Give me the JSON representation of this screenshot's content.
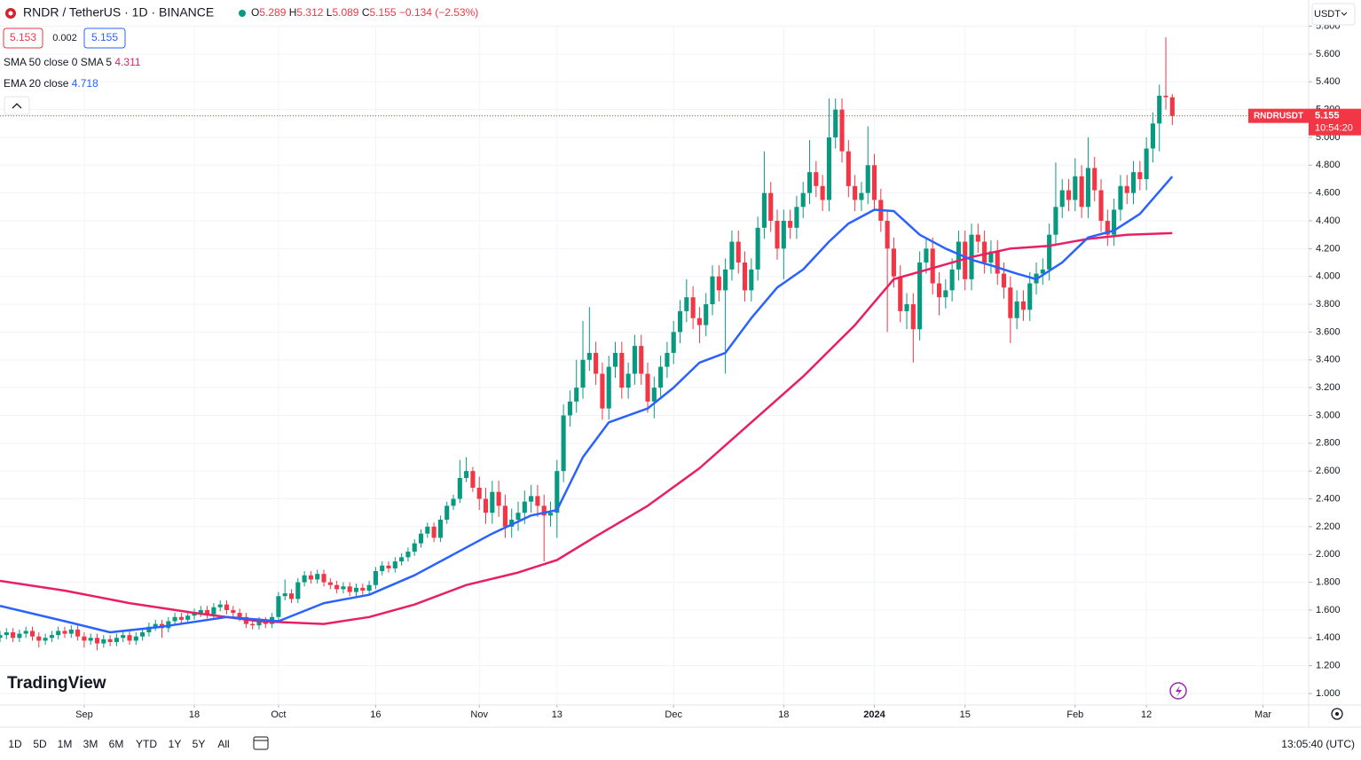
{
  "header": {
    "ohlc_labels": [
      "O",
      "H",
      "L",
      "C"
    ],
    "change": "−0.134 (−2.53%)",
    "bid": 5.153,
    "spread": 0.002,
    "ask": 5.155,
    "currency": "USDT",
    "symbol_tag": "RNDRUSDT",
    "countdown": "10:54:20",
    "logo": "TradingView"
  },
  "toolbar": {
    "ranges": [
      "1D",
      "5D",
      "1M",
      "3M",
      "6M",
      "YTD",
      "1Y",
      "5Y",
      "All"
    ],
    "clock": "13:05:40 (UTC)"
  },
  "chart_data": {
    "type": "candlestick",
    "title": "RNDR / TetherUS · 1D · BINANCE",
    "up_color": "#089981",
    "down_color": "#f23645",
    "grid": true,
    "xlim": [
      0,
      202.05
    ],
    "ylim": [
      0.917,
      5.797
    ],
    "xticks": [
      {
        "value": 13,
        "label": "Sep"
      },
      {
        "value": 30,
        "label": "18"
      },
      {
        "value": 43,
        "label": "Oct"
      },
      {
        "value": 58,
        "label": "16"
      },
      {
        "value": 74,
        "label": "Nov"
      },
      {
        "value": 86,
        "label": "13"
      },
      {
        "value": 104,
        "label": "Dec"
      },
      {
        "value": 121,
        "label": "18"
      },
      {
        "value": 135,
        "label": "2024"
      },
      {
        "value": 149,
        "label": "15"
      },
      {
        "value": 166,
        "label": "Feb"
      },
      {
        "value": 177,
        "label": "12"
      },
      {
        "value": 195,
        "label": "Mar"
      }
    ],
    "yticks": [
      {
        "value": 1.0,
        "label": "1.000"
      },
      {
        "value": 1.2,
        "label": "1.200"
      },
      {
        "value": 1.4,
        "label": "1.400"
      },
      {
        "value": 1.6,
        "label": "1.600"
      },
      {
        "value": 1.8,
        "label": "1.800"
      },
      {
        "value": 2.0,
        "label": "2.000"
      },
      {
        "value": 2.2,
        "label": "2.200"
      },
      {
        "value": 2.4,
        "label": "2.400"
      },
      {
        "value": 2.6,
        "label": "2.600"
      },
      {
        "value": 2.8,
        "label": "2.800"
      },
      {
        "value": 3.0,
        "label": "3.000"
      },
      {
        "value": 3.2,
        "label": "3.200"
      },
      {
        "value": 3.4,
        "label": "3.400"
      },
      {
        "value": 3.6,
        "label": "3.600"
      },
      {
        "value": 3.8,
        "label": "3.800"
      },
      {
        "value": 4.0,
        "label": "4.000"
      },
      {
        "value": 4.2,
        "label": "4.200"
      },
      {
        "value": 4.4,
        "label": "4.400"
      },
      {
        "value": 4.6,
        "label": "4.600"
      },
      {
        "value": 4.8,
        "label": "4.800"
      },
      {
        "value": 5.0,
        "label": "5.000"
      },
      {
        "value": 5.2,
        "label": "5.200"
      },
      {
        "value": 5.4,
        "label": "5.400"
      },
      {
        "value": 5.6,
        "label": "5.600"
      },
      {
        "value": 5.8,
        "label": "5.800"
      }
    ],
    "open": [
      1.4,
      1.42,
      1.44,
      1.4,
      1.43,
      1.45,
      1.41,
      1.38,
      1.4,
      1.42,
      1.45,
      1.43,
      1.46,
      1.41,
      1.38,
      1.4,
      1.36,
      1.39,
      1.37,
      1.4,
      1.42,
      1.38,
      1.41,
      1.44,
      1.48,
      1.5,
      1.47,
      1.52,
      1.55,
      1.53,
      1.56,
      1.58,
      1.6,
      1.57,
      1.62,
      1.64,
      1.6,
      1.58,
      1.55,
      1.5,
      1.49,
      1.52,
      1.5,
      1.55,
      1.7,
      1.72,
      1.68,
      1.8,
      1.85,
      1.82,
      1.86,
      1.8,
      1.78,
      1.75,
      1.77,
      1.73,
      1.76,
      1.74,
      1.78,
      1.88,
      1.92,
      1.9,
      1.95,
      1.98,
      2.02,
      2.08,
      2.15,
      2.2,
      2.12,
      2.25,
      2.35,
      2.4,
      2.55,
      2.6,
      2.48,
      2.4,
      2.3,
      2.45,
      2.35,
      2.2,
      2.25,
      2.3,
      2.38,
      2.42,
      2.35,
      2.28,
      2.3,
      2.6,
      3.0,
      3.1,
      3.2,
      3.4,
      3.45,
      3.3,
      3.05,
      3.35,
      3.45,
      3.2,
      3.3,
      3.5,
      3.3,
      3.1,
      3.2,
      3.35,
      3.45,
      3.6,
      3.75,
      3.85,
      3.7,
      3.65,
      3.8,
      4.0,
      3.9,
      4.05,
      4.25,
      4.1,
      3.9,
      4.05,
      4.35,
      4.6,
      4.4,
      4.2,
      4.4,
      4.35,
      4.5,
      4.6,
      4.75,
      4.65,
      4.55,
      5.0,
      5.2,
      4.9,
      4.65,
      4.55,
      4.6,
      4.8,
      4.55,
      4.4,
      4.2,
      4.0,
      3.75,
      3.8,
      3.62,
      4.1,
      4.2,
      3.95,
      3.85,
      3.9,
      4.05,
      4.25,
      3.98,
      4.3,
      4.25,
      4.1,
      4.18,
      4.02,
      3.92,
      3.7,
      3.82,
      3.76,
      3.95,
      4.02,
      4.05,
      4.3,
      4.5,
      4.62,
      4.55,
      4.72,
      4.5,
      4.78,
      4.62,
      4.4,
      4.3,
      4.48,
      4.65,
      4.6,
      4.75,
      4.7,
      4.92,
      5.1,
      5.3,
      5.289
    ],
    "high": [
      1.45,
      1.47,
      1.47,
      1.46,
      1.48,
      1.48,
      1.44,
      1.43,
      1.45,
      1.48,
      1.48,
      1.49,
      1.49,
      1.44,
      1.43,
      1.43,
      1.42,
      1.42,
      1.43,
      1.45,
      1.45,
      1.44,
      1.47,
      1.51,
      1.53,
      1.53,
      1.55,
      1.58,
      1.58,
      1.59,
      1.61,
      1.63,
      1.63,
      1.65,
      1.67,
      1.67,
      1.63,
      1.61,
      1.58,
      1.53,
      1.55,
      1.55,
      1.58,
      1.73,
      1.82,
      1.75,
      1.83,
      1.88,
      1.88,
      1.89,
      1.89,
      1.83,
      1.81,
      1.8,
      1.8,
      1.79,
      1.79,
      1.81,
      1.91,
      1.95,
      1.95,
      1.98,
      2.01,
      2.05,
      2.11,
      2.18,
      2.23,
      2.23,
      2.28,
      2.38,
      2.43,
      2.68,
      2.7,
      2.63,
      2.56,
      2.48,
      2.53,
      2.53,
      2.43,
      2.33,
      2.38,
      2.46,
      2.5,
      2.5,
      2.43,
      2.38,
      2.68,
      3.08,
      3.18,
      3.4,
      3.68,
      3.78,
      3.53,
      3.38,
      3.43,
      3.53,
      3.53,
      3.38,
      3.58,
      3.58,
      3.38,
      3.28,
      3.43,
      3.53,
      3.68,
      3.83,
      3.98,
      3.93,
      3.78,
      3.88,
      4.08,
      4.08,
      4.13,
      4.33,
      4.33,
      4.18,
      4.13,
      4.43,
      4.9,
      4.68,
      4.48,
      4.48,
      4.48,
      4.58,
      4.68,
      4.98,
      4.83,
      4.73,
      5.28,
      5.28,
      5.28,
      4.98,
      4.73,
      4.68,
      5.08,
      4.88,
      4.63,
      4.48,
      4.28,
      4.08,
      3.88,
      3.88,
      4.18,
      4.28,
      4.28,
      4.03,
      3.98,
      4.13,
      4.33,
      4.33,
      4.38,
      4.38,
      4.33,
      4.26,
      4.26,
      4.1,
      4.0,
      3.9,
      3.9,
      4.03,
      4.1,
      4.13,
      4.38,
      4.82,
      4.7,
      4.7,
      4.85,
      4.8,
      5.0,
      4.86,
      4.7,
      4.48,
      4.56,
      4.73,
      4.73,
      4.83,
      4.83,
      5.0,
      5.18,
      5.38,
      5.72,
      5.312
    ],
    "low": [
      1.37,
      1.39,
      1.37,
      1.37,
      1.4,
      1.38,
      1.33,
      1.35,
      1.37,
      1.39,
      1.4,
      1.4,
      1.38,
      1.33,
      1.35,
      1.31,
      1.33,
      1.34,
      1.34,
      1.37,
      1.35,
      1.35,
      1.38,
      1.41,
      1.45,
      1.4,
      1.44,
      1.49,
      1.5,
      1.5,
      1.53,
      1.55,
      1.54,
      1.54,
      1.59,
      1.57,
      1.55,
      1.52,
      1.47,
      1.46,
      1.46,
      1.47,
      1.47,
      1.52,
      1.67,
      1.65,
      1.65,
      1.77,
      1.79,
      1.79,
      1.77,
      1.75,
      1.72,
      1.72,
      1.7,
      1.7,
      1.71,
      1.71,
      1.75,
      1.85,
      1.87,
      1.87,
      1.92,
      1.95,
      1.99,
      2.05,
      2.12,
      2.09,
      2.09,
      2.22,
      2.32,
      2.37,
      2.52,
      2.45,
      2.32,
      2.22,
      2.22,
      2.27,
      2.12,
      2.12,
      2.17,
      2.22,
      2.3,
      2.27,
      1.95,
      2.2,
      2.12,
      2.52,
      2.92,
      3.02,
      3.12,
      3.32,
      3.22,
      2.97,
      2.97,
      3.27,
      3.12,
      3.12,
      3.22,
      3.22,
      3.02,
      2.98,
      3.12,
      3.27,
      3.37,
      3.52,
      3.67,
      3.62,
      3.52,
      3.57,
      3.72,
      3.82,
      3.3,
      3.97,
      4.02,
      3.82,
      3.82,
      3.97,
      4.27,
      4.32,
      4.12,
      3.98,
      4.27,
      4.27,
      4.42,
      4.52,
      4.57,
      4.47,
      4.47,
      4.92,
      4.82,
      4.57,
      4.47,
      4.47,
      4.52,
      4.47,
      4.32,
      3.6,
      3.92,
      3.67,
      3.62,
      3.38,
      3.54,
      4.02,
      3.87,
      3.72,
      3.77,
      3.82,
      3.97,
      3.9,
      3.9,
      4.17,
      4.02,
      4.02,
      3.94,
      3.84,
      3.52,
      3.62,
      3.68,
      3.68,
      3.87,
      3.94,
      3.97,
      4.22,
      4.42,
      4.47,
      4.47,
      4.42,
      4.42,
      4.54,
      4.32,
      4.22,
      4.22,
      4.4,
      4.52,
      4.52,
      4.62,
      4.62,
      4.82,
      4.9,
      5.2,
      5.089
    ],
    "close": [
      1.42,
      1.44,
      1.4,
      1.43,
      1.45,
      1.41,
      1.38,
      1.4,
      1.42,
      1.45,
      1.43,
      1.46,
      1.41,
      1.38,
      1.4,
      1.36,
      1.39,
      1.37,
      1.4,
      1.42,
      1.38,
      1.41,
      1.44,
      1.48,
      1.5,
      1.47,
      1.52,
      1.55,
      1.53,
      1.56,
      1.58,
      1.6,
      1.57,
      1.62,
      1.64,
      1.6,
      1.58,
      1.55,
      1.5,
      1.49,
      1.52,
      1.5,
      1.55,
      1.7,
      1.72,
      1.68,
      1.8,
      1.85,
      1.82,
      1.86,
      1.8,
      1.78,
      1.75,
      1.77,
      1.73,
      1.76,
      1.74,
      1.78,
      1.88,
      1.92,
      1.9,
      1.95,
      1.98,
      2.02,
      2.08,
      2.15,
      2.2,
      2.12,
      2.25,
      2.35,
      2.4,
      2.55,
      2.6,
      2.48,
      2.4,
      2.3,
      2.45,
      2.35,
      2.2,
      2.25,
      2.3,
      2.38,
      2.42,
      2.35,
      2.28,
      2.3,
      2.6,
      3.0,
      3.1,
      3.2,
      3.4,
      3.45,
      3.3,
      3.05,
      3.35,
      3.45,
      3.2,
      3.3,
      3.5,
      3.3,
      3.1,
      3.2,
      3.35,
      3.45,
      3.6,
      3.75,
      3.85,
      3.7,
      3.65,
      3.8,
      4.0,
      3.9,
      4.05,
      4.25,
      4.1,
      3.9,
      4.05,
      4.35,
      4.6,
      4.4,
      4.2,
      4.4,
      4.35,
      4.5,
      4.6,
      4.75,
      4.65,
      4.55,
      5.0,
      5.2,
      4.9,
      4.65,
      4.55,
      4.6,
      4.8,
      4.55,
      4.4,
      4.2,
      4.0,
      3.75,
      3.8,
      3.62,
      4.1,
      4.2,
      3.95,
      3.85,
      3.9,
      4.05,
      4.25,
      3.98,
      4.3,
      4.25,
      4.1,
      4.18,
      4.02,
      3.92,
      3.7,
      3.82,
      3.76,
      3.95,
      4.02,
      4.05,
      4.3,
      4.5,
      4.62,
      4.55,
      4.72,
      4.5,
      4.78,
      4.62,
      4.4,
      4.3,
      4.48,
      4.65,
      4.6,
      4.75,
      4.7,
      4.92,
      5.1,
      5.3,
      5.289,
      5.155
    ],
    "series": [
      {
        "name": "SMA 50 close 0 SMA 5",
        "color": "#e91e63",
        "x": [
          0,
          10,
          20,
          30,
          40,
          50,
          57,
          64,
          72,
          80,
          86,
          92,
          100,
          108,
          116,
          124,
          132,
          138,
          144,
          150,
          156,
          162,
          168,
          174,
          181
        ],
        "values": [
          1.81,
          1.74,
          1.65,
          1.58,
          1.52,
          1.5,
          1.55,
          1.64,
          1.78,
          1.87,
          1.96,
          2.13,
          2.35,
          2.62,
          2.95,
          3.28,
          3.65,
          3.98,
          4.06,
          4.14,
          4.2,
          4.22,
          4.27,
          4.3,
          4.311
        ]
      },
      {
        "name": "EMA 20 close",
        "color": "#2962ff",
        "x": [
          0,
          10,
          17,
          25,
          35,
          43,
          50,
          57,
          64,
          70,
          76,
          82,
          86,
          90,
          94,
          100,
          104,
          108,
          112,
          116,
          120,
          124,
          128,
          131,
          135,
          138,
          142,
          146,
          150,
          153,
          157,
          160,
          164,
          168,
          172,
          176,
          181
        ],
        "values": [
          1.63,
          1.52,
          1.44,
          1.48,
          1.55,
          1.52,
          1.65,
          1.71,
          1.85,
          2.0,
          2.15,
          2.28,
          2.32,
          2.7,
          2.95,
          3.05,
          3.2,
          3.38,
          3.45,
          3.7,
          3.92,
          4.05,
          4.25,
          4.38,
          4.48,
          4.47,
          4.3,
          4.2,
          4.12,
          4.08,
          4.02,
          3.98,
          4.1,
          4.28,
          4.33,
          4.45,
          4.718
        ]
      }
    ]
  }
}
